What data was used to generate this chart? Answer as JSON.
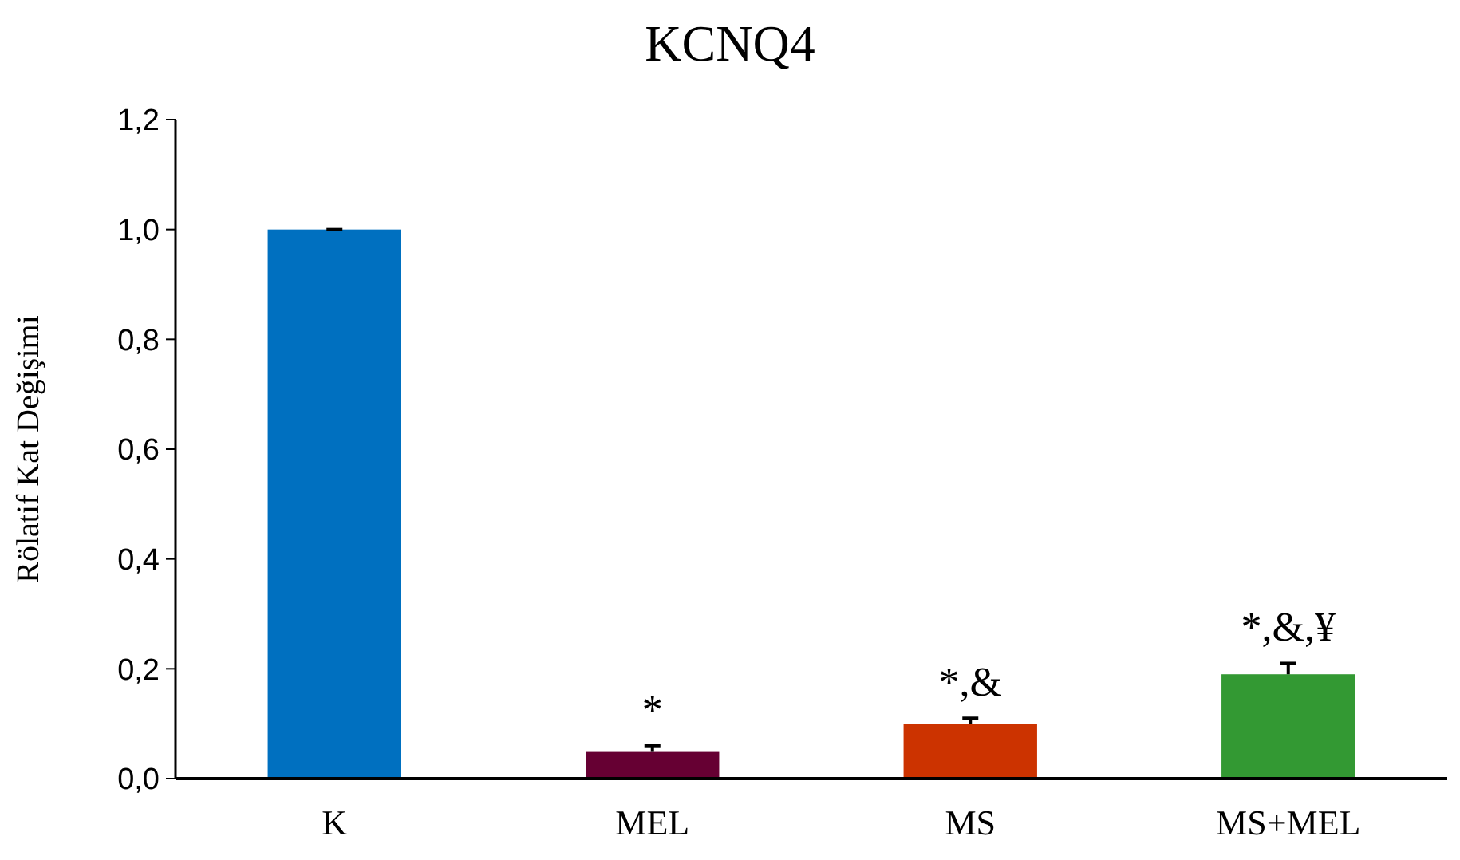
{
  "chart_data": {
    "type": "bar",
    "title": "KCNQ4",
    "ylabel": "Rölatif Kat Değişimi",
    "categories": [
      "K",
      "MEL",
      "MS",
      "MS+MEL"
    ],
    "values": [
      1.0,
      0.05,
      0.1,
      0.19
    ],
    "colors": [
      "#0070c0",
      "#660033",
      "#cc3300",
      "#339933"
    ],
    "errors": [
      [
        1.0,
        1.0
      ],
      [
        0.05,
        0.06
      ],
      [
        0.1,
        0.11
      ],
      [
        0.19,
        0.21
      ]
    ],
    "ylim": [
      0,
      1.2
    ],
    "yticks": [
      {
        "value": 0,
        "label": "0,0"
      },
      {
        "value": 0.2,
        "label": "0,2"
      },
      {
        "value": 0.4,
        "label": "0,4"
      },
      {
        "value": 0.6,
        "label": "0,6"
      },
      {
        "value": 0.8,
        "label": "0,8"
      },
      {
        "value": 1.0,
        "label": "1,0"
      },
      {
        "value": 1.2,
        "label": "1,2"
      }
    ],
    "grid": false,
    "annotations": [
      {
        "text": "*",
        "x": "MEL",
        "y": 0.06
      },
      {
        "text": "*,&",
        "x": "MS",
        "y": 0.11
      },
      {
        "text": "*,&,¥",
        "x": "MS+MEL",
        "y": 0.21
      }
    ]
  }
}
